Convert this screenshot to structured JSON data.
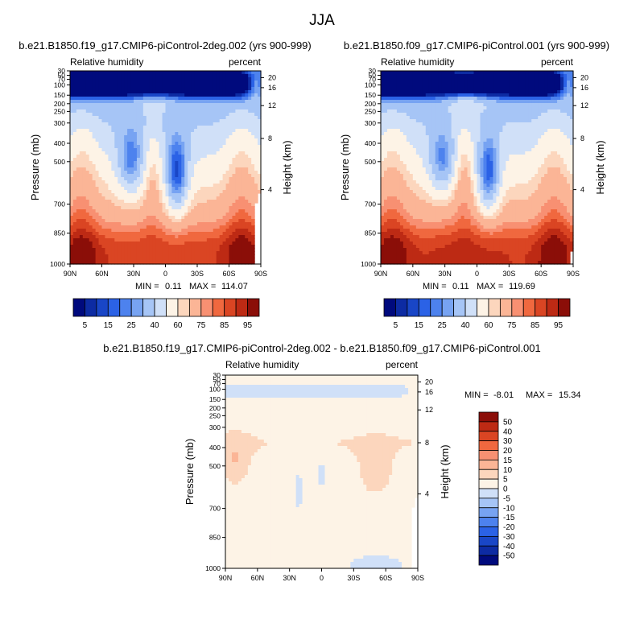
{
  "page": {
    "title": "JJA"
  },
  "colors": {
    "abs_levels": [
      5,
      10,
      15,
      20,
      25,
      30,
      40,
      50,
      60,
      65,
      75,
      80,
      85,
      90,
      95
    ],
    "abs_palette": [
      "#000a7d",
      "#0d2ba3",
      "#1946c7",
      "#2b62e6",
      "#4d82ee",
      "#77a3f2",
      "#a6c5f6",
      "#d0e0f8",
      "#fdf3e6",
      "#fcd6bd",
      "#fbb596",
      "#f89072",
      "#f0683f",
      "#da4523",
      "#bd2a14",
      "#8b0e08"
    ],
    "diff_levels": [
      -50,
      -40,
      -30,
      -20,
      -15,
      -10,
      -5,
      0,
      5,
      10,
      15,
      20,
      30,
      40,
      50
    ],
    "diff_palette": [
      "#000a7d",
      "#0d2ba3",
      "#1946c7",
      "#2b62e6",
      "#4d82ee",
      "#77a3f2",
      "#a6c5f6",
      "#d0e0f8",
      "#fdf3e6",
      "#fcd6bd",
      "#fbb596",
      "#f89072",
      "#f0683f",
      "#da4523",
      "#bd2a14",
      "#8b0e08"
    ]
  },
  "chart_data": [
    {
      "id": "panel1",
      "type": "heatmap",
      "title": "b.e21.B1850.f19_g17.CMIP6-piControl-2deg.002 (yrs 900-999)",
      "left_label": "Relative humidity",
      "right_label": "percent",
      "ylabel": "Pressure (mb)",
      "y2label": "Height (km)",
      "x_ticks": [
        "90N",
        "60N",
        "30N",
        "0",
        "30S",
        "60S",
        "90S"
      ],
      "y_ticks": [
        "30",
        "50",
        "70",
        "100",
        "150",
        "200",
        "250",
        "300",
        "400",
        "500",
        "700",
        "850",
        "1000"
      ],
      "height_ticks": [
        "20",
        "16",
        "12",
        "8",
        "4"
      ],
      "stats": {
        "min_label": "MIN =",
        "min": "0.11",
        "max_label": "MAX =",
        "max": "114.07"
      },
      "colorbar_labels": [
        "5",
        "15",
        "25",
        "40",
        "60",
        "75",
        "85",
        "95"
      ]
    },
    {
      "id": "panel2",
      "type": "heatmap",
      "title": "b.e21.B1850.f09_g17.CMIP6-piControl.001 (yrs 900-999)",
      "left_label": "Relative humidity",
      "right_label": "percent",
      "ylabel": "Pressure (mb)",
      "y2label": "Height (km)",
      "x_ticks": [
        "90N",
        "60N",
        "30N",
        "0",
        "30S",
        "60S",
        "90S"
      ],
      "y_ticks": [
        "30",
        "50",
        "70",
        "100",
        "150",
        "200",
        "250",
        "300",
        "400",
        "500",
        "700",
        "850",
        "1000"
      ],
      "height_ticks": [
        "20",
        "16",
        "12",
        "8",
        "4"
      ],
      "stats": {
        "min_label": "MIN =",
        "min": "0.11",
        "max_label": "MAX =",
        "max": "119.69"
      },
      "colorbar_labels": [
        "5",
        "15",
        "25",
        "40",
        "60",
        "75",
        "85",
        "95"
      ]
    },
    {
      "id": "panel3",
      "type": "heatmap",
      "title": "b.e21.B1850.f19_g17.CMIP6-piControl-2deg.002 - b.e21.B1850.f09_g17.CMIP6-piControl.001",
      "left_label": "Relative humidity",
      "right_label": "percent",
      "ylabel": "Pressure (mb)",
      "y2label": "Height (km)",
      "x_ticks": [
        "90N",
        "60N",
        "30N",
        "0",
        "30S",
        "60S",
        "90S"
      ],
      "y_ticks": [
        "30",
        "50",
        "70",
        "100",
        "150",
        "200",
        "250",
        "300",
        "400",
        "500",
        "700",
        "850",
        "1000"
      ],
      "height_ticks": [
        "20",
        "16",
        "12",
        "8",
        "4"
      ],
      "stats": {
        "min_label": "MIN =",
        "min": "-8.01",
        "max_label": "MAX =",
        "max": "15.34"
      },
      "colorbar_labels": [
        "50",
        "40",
        "30",
        "20",
        "15",
        "10",
        "5",
        "0",
        "-5",
        "-10",
        "-15",
        "-20",
        "-30",
        "-40",
        "-50"
      ]
    }
  ]
}
